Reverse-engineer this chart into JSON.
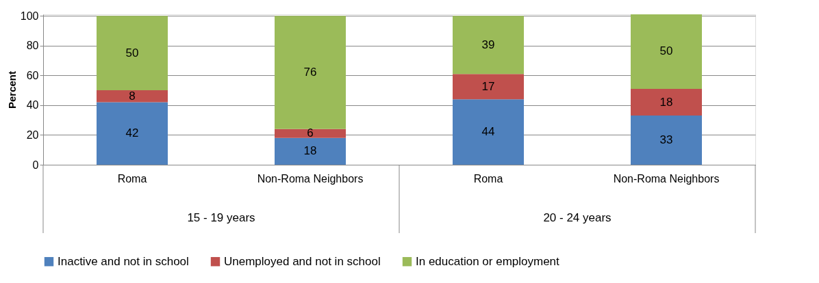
{
  "chart_data": {
    "type": "bar",
    "stacked": true,
    "ylabel": "Percent",
    "categories": [
      "Roma",
      "Non-Roma Neighbors",
      "Roma",
      "Non-Roma Neighbors"
    ],
    "series": [
      {
        "name": "Inactive and not in school",
        "color": "#4f81bd",
        "values": [
          42,
          18,
          44,
          33
        ]
      },
      {
        "name": "Unemployed and not in school",
        "color": "#c0504d",
        "values": [
          8,
          6,
          17,
          18
        ]
      },
      {
        "name": "In education or employment",
        "color": "#9bbb59",
        "values": [
          50,
          76,
          39,
          50
        ]
      }
    ],
    "annotations": [
      "15 - 19 years",
      "20 - 24 years"
    ],
    "ylim": [
      0,
      101
    ],
    "yticks": [
      0,
      20,
      40,
      60,
      80,
      100
    ],
    "grid": "y",
    "legend": "bottom",
    "data_labels": true
  }
}
